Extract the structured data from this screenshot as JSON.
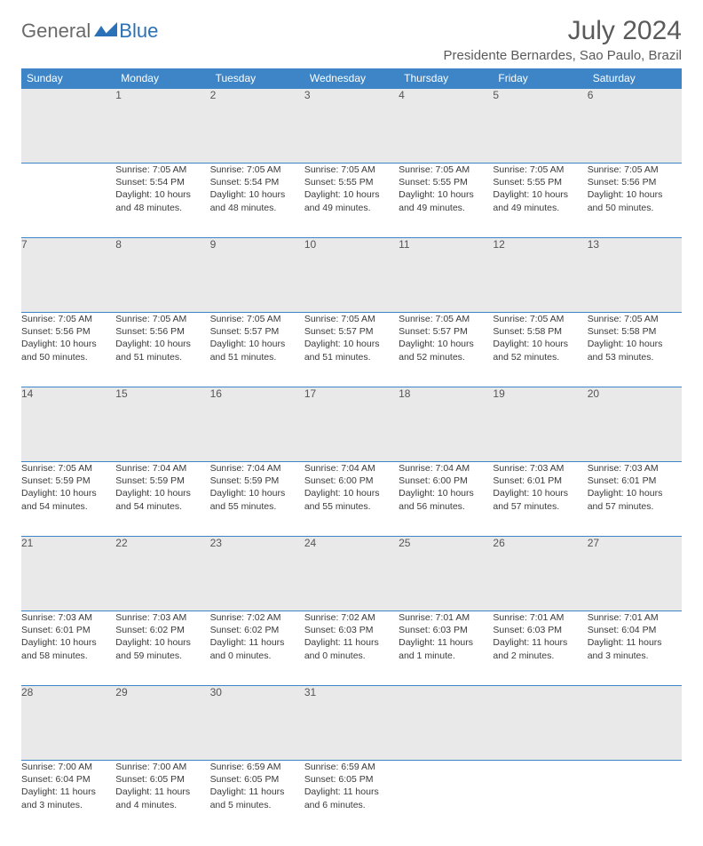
{
  "logo": {
    "general": "General",
    "blue": "Blue"
  },
  "header": {
    "month": "July 2024",
    "location": "Presidente Bernardes, Sao Paulo, Brazil"
  },
  "columns": [
    "Sunday",
    "Monday",
    "Tuesday",
    "Wednesday",
    "Thursday",
    "Friday",
    "Saturday"
  ],
  "style": {
    "header_bg": "#3d85c6",
    "header_fg": "#ffffff",
    "daynum_bg": "#e9e9e9",
    "border_color": "#3d85c6",
    "body_fontsize": 10.5,
    "header_fontsize": 12,
    "title_fontsize": 30,
    "location_fontsize": 15
  },
  "weeks": [
    {
      "nums": [
        "",
        "1",
        "2",
        "3",
        "4",
        "5",
        "6"
      ],
      "cells": [
        {
          "sunrise": "",
          "sunset": "",
          "daylight1": "",
          "daylight2": ""
        },
        {
          "sunrise": "Sunrise: 7:05 AM",
          "sunset": "Sunset: 5:54 PM",
          "daylight1": "Daylight: 10 hours",
          "daylight2": "and 48 minutes."
        },
        {
          "sunrise": "Sunrise: 7:05 AM",
          "sunset": "Sunset: 5:54 PM",
          "daylight1": "Daylight: 10 hours",
          "daylight2": "and 48 minutes."
        },
        {
          "sunrise": "Sunrise: 7:05 AM",
          "sunset": "Sunset: 5:55 PM",
          "daylight1": "Daylight: 10 hours",
          "daylight2": "and 49 minutes."
        },
        {
          "sunrise": "Sunrise: 7:05 AM",
          "sunset": "Sunset: 5:55 PM",
          "daylight1": "Daylight: 10 hours",
          "daylight2": "and 49 minutes."
        },
        {
          "sunrise": "Sunrise: 7:05 AM",
          "sunset": "Sunset: 5:55 PM",
          "daylight1": "Daylight: 10 hours",
          "daylight2": "and 49 minutes."
        },
        {
          "sunrise": "Sunrise: 7:05 AM",
          "sunset": "Sunset: 5:56 PM",
          "daylight1": "Daylight: 10 hours",
          "daylight2": "and 50 minutes."
        }
      ]
    },
    {
      "nums": [
        "7",
        "8",
        "9",
        "10",
        "11",
        "12",
        "13"
      ],
      "cells": [
        {
          "sunrise": "Sunrise: 7:05 AM",
          "sunset": "Sunset: 5:56 PM",
          "daylight1": "Daylight: 10 hours",
          "daylight2": "and 50 minutes."
        },
        {
          "sunrise": "Sunrise: 7:05 AM",
          "sunset": "Sunset: 5:56 PM",
          "daylight1": "Daylight: 10 hours",
          "daylight2": "and 51 minutes."
        },
        {
          "sunrise": "Sunrise: 7:05 AM",
          "sunset": "Sunset: 5:57 PM",
          "daylight1": "Daylight: 10 hours",
          "daylight2": "and 51 minutes."
        },
        {
          "sunrise": "Sunrise: 7:05 AM",
          "sunset": "Sunset: 5:57 PM",
          "daylight1": "Daylight: 10 hours",
          "daylight2": "and 51 minutes."
        },
        {
          "sunrise": "Sunrise: 7:05 AM",
          "sunset": "Sunset: 5:57 PM",
          "daylight1": "Daylight: 10 hours",
          "daylight2": "and 52 minutes."
        },
        {
          "sunrise": "Sunrise: 7:05 AM",
          "sunset": "Sunset: 5:58 PM",
          "daylight1": "Daylight: 10 hours",
          "daylight2": "and 52 minutes."
        },
        {
          "sunrise": "Sunrise: 7:05 AM",
          "sunset": "Sunset: 5:58 PM",
          "daylight1": "Daylight: 10 hours",
          "daylight2": "and 53 minutes."
        }
      ]
    },
    {
      "nums": [
        "14",
        "15",
        "16",
        "17",
        "18",
        "19",
        "20"
      ],
      "cells": [
        {
          "sunrise": "Sunrise: 7:05 AM",
          "sunset": "Sunset: 5:59 PM",
          "daylight1": "Daylight: 10 hours",
          "daylight2": "and 54 minutes."
        },
        {
          "sunrise": "Sunrise: 7:04 AM",
          "sunset": "Sunset: 5:59 PM",
          "daylight1": "Daylight: 10 hours",
          "daylight2": "and 54 minutes."
        },
        {
          "sunrise": "Sunrise: 7:04 AM",
          "sunset": "Sunset: 5:59 PM",
          "daylight1": "Daylight: 10 hours",
          "daylight2": "and 55 minutes."
        },
        {
          "sunrise": "Sunrise: 7:04 AM",
          "sunset": "Sunset: 6:00 PM",
          "daylight1": "Daylight: 10 hours",
          "daylight2": "and 55 minutes."
        },
        {
          "sunrise": "Sunrise: 7:04 AM",
          "sunset": "Sunset: 6:00 PM",
          "daylight1": "Daylight: 10 hours",
          "daylight2": "and 56 minutes."
        },
        {
          "sunrise": "Sunrise: 7:03 AM",
          "sunset": "Sunset: 6:01 PM",
          "daylight1": "Daylight: 10 hours",
          "daylight2": "and 57 minutes."
        },
        {
          "sunrise": "Sunrise: 7:03 AM",
          "sunset": "Sunset: 6:01 PM",
          "daylight1": "Daylight: 10 hours",
          "daylight2": "and 57 minutes."
        }
      ]
    },
    {
      "nums": [
        "21",
        "22",
        "23",
        "24",
        "25",
        "26",
        "27"
      ],
      "cells": [
        {
          "sunrise": "Sunrise: 7:03 AM",
          "sunset": "Sunset: 6:01 PM",
          "daylight1": "Daylight: 10 hours",
          "daylight2": "and 58 minutes."
        },
        {
          "sunrise": "Sunrise: 7:03 AM",
          "sunset": "Sunset: 6:02 PM",
          "daylight1": "Daylight: 10 hours",
          "daylight2": "and 59 minutes."
        },
        {
          "sunrise": "Sunrise: 7:02 AM",
          "sunset": "Sunset: 6:02 PM",
          "daylight1": "Daylight: 11 hours",
          "daylight2": "and 0 minutes."
        },
        {
          "sunrise": "Sunrise: 7:02 AM",
          "sunset": "Sunset: 6:03 PM",
          "daylight1": "Daylight: 11 hours",
          "daylight2": "and 0 minutes."
        },
        {
          "sunrise": "Sunrise: 7:01 AM",
          "sunset": "Sunset: 6:03 PM",
          "daylight1": "Daylight: 11 hours",
          "daylight2": "and 1 minute."
        },
        {
          "sunrise": "Sunrise: 7:01 AM",
          "sunset": "Sunset: 6:03 PM",
          "daylight1": "Daylight: 11 hours",
          "daylight2": "and 2 minutes."
        },
        {
          "sunrise": "Sunrise: 7:01 AM",
          "sunset": "Sunset: 6:04 PM",
          "daylight1": "Daylight: 11 hours",
          "daylight2": "and 3 minutes."
        }
      ]
    },
    {
      "nums": [
        "28",
        "29",
        "30",
        "31",
        "",
        "",
        ""
      ],
      "cells": [
        {
          "sunrise": "Sunrise: 7:00 AM",
          "sunset": "Sunset: 6:04 PM",
          "daylight1": "Daylight: 11 hours",
          "daylight2": "and 3 minutes."
        },
        {
          "sunrise": "Sunrise: 7:00 AM",
          "sunset": "Sunset: 6:05 PM",
          "daylight1": "Daylight: 11 hours",
          "daylight2": "and 4 minutes."
        },
        {
          "sunrise": "Sunrise: 6:59 AM",
          "sunset": "Sunset: 6:05 PM",
          "daylight1": "Daylight: 11 hours",
          "daylight2": "and 5 minutes."
        },
        {
          "sunrise": "Sunrise: 6:59 AM",
          "sunset": "Sunset: 6:05 PM",
          "daylight1": "Daylight: 11 hours",
          "daylight2": "and 6 minutes."
        },
        {
          "sunrise": "",
          "sunset": "",
          "daylight1": "",
          "daylight2": ""
        },
        {
          "sunrise": "",
          "sunset": "",
          "daylight1": "",
          "daylight2": ""
        },
        {
          "sunrise": "",
          "sunset": "",
          "daylight1": "",
          "daylight2": ""
        }
      ]
    }
  ]
}
